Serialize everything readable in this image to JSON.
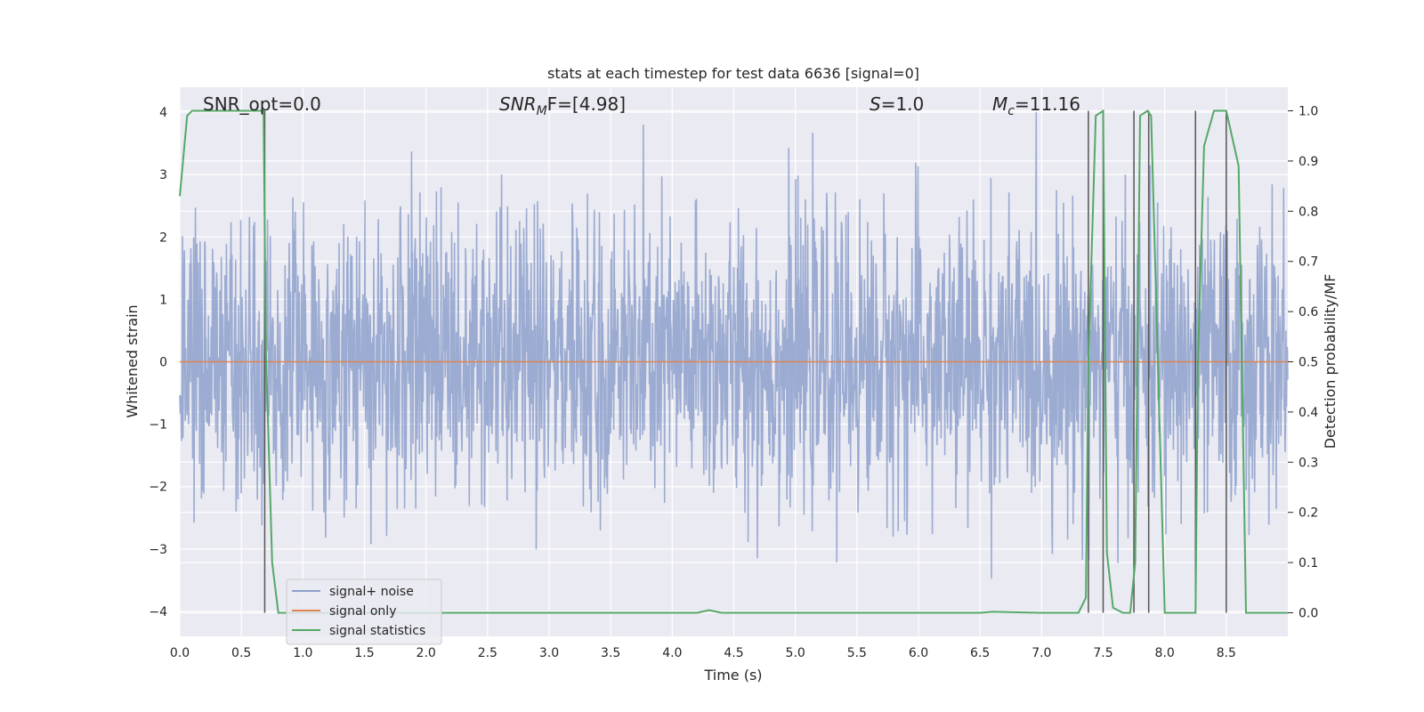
{
  "chart_data": {
    "type": "line",
    "title": "stats at each timestep for test data 6636 [signal=0]",
    "xlabel": "Time (s)",
    "ylabel_left": "Whitened strain",
    "ylabel_right": "Detection probability/MF",
    "xlim": [
      0,
      9.0
    ],
    "ylim_left": [
      -4.4,
      4.4
    ],
    "ylim_right": [
      -0.047,
      1.047
    ],
    "x_ticks": [
      "0.0",
      "0.5",
      "1.0",
      "1.5",
      "2.0",
      "2.5",
      "3.0",
      "3.5",
      "4.0",
      "4.5",
      "5.0",
      "5.5",
      "6.0",
      "6.5",
      "7.0",
      "7.5",
      "8.0",
      "8.5"
    ],
    "y_left_ticks": [
      "4",
      "3",
      "2",
      "1",
      "0",
      "−1",
      "−2",
      "−3",
      "−4"
    ],
    "y_right_ticks": [
      "1.0",
      "0.9",
      "0.8",
      "0.7",
      "0.6",
      "0.5",
      "0.4",
      "0.3",
      "0.2",
      "0.1",
      "0.0"
    ],
    "grid": true,
    "legend_position": "lower-left",
    "annotations": {
      "snr_opt": "SNR_opt=0.0",
      "snr_mf_main": "SNR",
      "snr_mf_sub": "M",
      "snr_mf_rest": "F=[4.98]",
      "s_main": "S",
      "s_rest": "=1.0",
      "mc_main": "M",
      "mc_sub": "c",
      "mc_rest": "=11.16"
    },
    "series": [
      {
        "name": "signal+ noise",
        "color": "#8da0cb",
        "note_kind": "whitened noise, std ~1"
      },
      {
        "name": "signal only",
        "color": "#dd8452",
        "values_constant": 0
      },
      {
        "name": "signal statistics",
        "color": "#55a868",
        "x": [
          0.0,
          0.06,
          0.1,
          0.2,
          0.5,
          0.68,
          0.7,
          0.75,
          0.8,
          1.0,
          2.0,
          3.0,
          4.0,
          4.2,
          4.3,
          4.4,
          5.0,
          6.0,
          6.5,
          6.6,
          7.0,
          7.3,
          7.36,
          7.38,
          7.44,
          7.5,
          7.53,
          7.58,
          7.66,
          7.72,
          7.76,
          7.8,
          7.86,
          7.89,
          8.0,
          8.25,
          8.27,
          8.32,
          8.4,
          8.5,
          8.6,
          8.66,
          8.75,
          9.0
        ],
        "y": [
          0.83,
          0.99,
          1.0,
          1.0,
          1.0,
          1.0,
          0.52,
          0.1,
          0.0,
          0.0,
          0.0,
          0.0,
          0.0,
          0.0,
          0.005,
          0.0,
          0.0,
          0.0,
          0.0,
          0.002,
          0.0,
          0.0,
          0.03,
          0.5,
          0.99,
          1.0,
          0.12,
          0.01,
          0.0,
          0.0,
          0.1,
          0.99,
          1.0,
          0.99,
          0.0,
          0.0,
          0.5,
          0.93,
          1.0,
          1.0,
          0.89,
          0.0,
          0.0,
          0.0
        ]
      }
    ],
    "vertical_markers_x": [
      0.69,
      7.38,
      7.5,
      7.75,
      7.87,
      8.25,
      8.5
    ]
  },
  "colors": {
    "axes_bg": "#eaeaf2",
    "grid": "#ffffff",
    "marker_line": "#555555"
  }
}
